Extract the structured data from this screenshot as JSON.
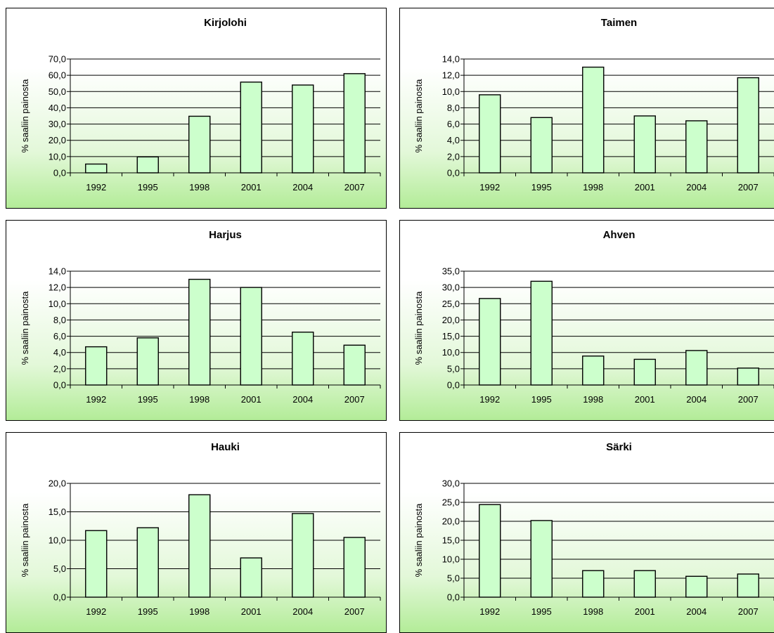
{
  "colors": {
    "bar_fill": "#ccffcc",
    "bar_stroke": "#000000",
    "grid": "#000000"
  },
  "chart_data": [
    {
      "type": "bar",
      "title": "Kirjolohi",
      "ylabel": "% saaliin painosta",
      "xlabel": "",
      "categories": [
        "1992",
        "1995",
        "1998",
        "2001",
        "2004",
        "2007"
      ],
      "values": [
        5.4,
        9.8,
        34.8,
        55.8,
        54.0,
        61.0
      ],
      "ylim": [
        0,
        70
      ],
      "yticks": [
        "0,0",
        "10,0",
        "20,0",
        "30,0",
        "40,0",
        "50,0",
        "60,0",
        "70,0"
      ],
      "grid": true,
      "legend": "none"
    },
    {
      "type": "bar",
      "title": "Taimen",
      "ylabel": "% saaliin painosta",
      "xlabel": "",
      "categories": [
        "1992",
        "1995",
        "1998",
        "2001",
        "2004",
        "2007"
      ],
      "values": [
        9.6,
        6.8,
        13.0,
        7.0,
        6.4,
        11.7
      ],
      "ylim": [
        0,
        14
      ],
      "yticks": [
        "0,0",
        "2,0",
        "4,0",
        "6,0",
        "8,0",
        "10,0",
        "12,0",
        "14,0"
      ],
      "grid": true,
      "legend": "none"
    },
    {
      "type": "bar",
      "title": "Harjus",
      "ylabel": "% saaliin painosta",
      "xlabel": "",
      "categories": [
        "1992",
        "1995",
        "1998",
        "2001",
        "2004",
        "2007"
      ],
      "values": [
        4.7,
        5.8,
        13.0,
        12.0,
        6.5,
        4.9
      ],
      "ylim": [
        0,
        14
      ],
      "yticks": [
        "0,0",
        "2,0",
        "4,0",
        "6,0",
        "8,0",
        "10,0",
        "12,0",
        "14,0"
      ],
      "grid": true,
      "legend": "none"
    },
    {
      "type": "bar",
      "title": "Ahven",
      "ylabel": "% saaliin painosta",
      "xlabel": "",
      "categories": [
        "1992",
        "1995",
        "1998",
        "2001",
        "2004",
        "2007"
      ],
      "values": [
        26.6,
        31.9,
        8.9,
        7.9,
        10.6,
        5.2
      ],
      "ylim": [
        0,
        35
      ],
      "yticks": [
        "0,0",
        "5,0",
        "10,0",
        "15,0",
        "20,0",
        "25,0",
        "30,0",
        "35,0"
      ],
      "grid": true,
      "legend": "none"
    },
    {
      "type": "bar",
      "title": "Hauki",
      "ylabel": "% saaliin painosta",
      "xlabel": "",
      "categories": [
        "1992",
        "1995",
        "1998",
        "2001",
        "2004",
        "2007"
      ],
      "values": [
        11.7,
        12.2,
        18.0,
        6.9,
        14.7,
        10.5
      ],
      "ylim": [
        0,
        20
      ],
      "yticks": [
        "0,0",
        "5,0",
        "10,0",
        "15,0",
        "20,0"
      ],
      "grid": true,
      "legend": "none"
    },
    {
      "type": "bar",
      "title": "Särki",
      "ylabel": "% saaliin painosta",
      "xlabel": "",
      "categories": [
        "1992",
        "1995",
        "1998",
        "2001",
        "2004",
        "2007"
      ],
      "values": [
        24.4,
        20.2,
        7.0,
        7.0,
        5.5,
        6.1
      ],
      "ylim": [
        0,
        30
      ],
      "yticks": [
        "0,0",
        "5,0",
        "10,0",
        "15,0",
        "20,0",
        "25,0",
        "30,0"
      ],
      "grid": true,
      "legend": "none"
    }
  ]
}
